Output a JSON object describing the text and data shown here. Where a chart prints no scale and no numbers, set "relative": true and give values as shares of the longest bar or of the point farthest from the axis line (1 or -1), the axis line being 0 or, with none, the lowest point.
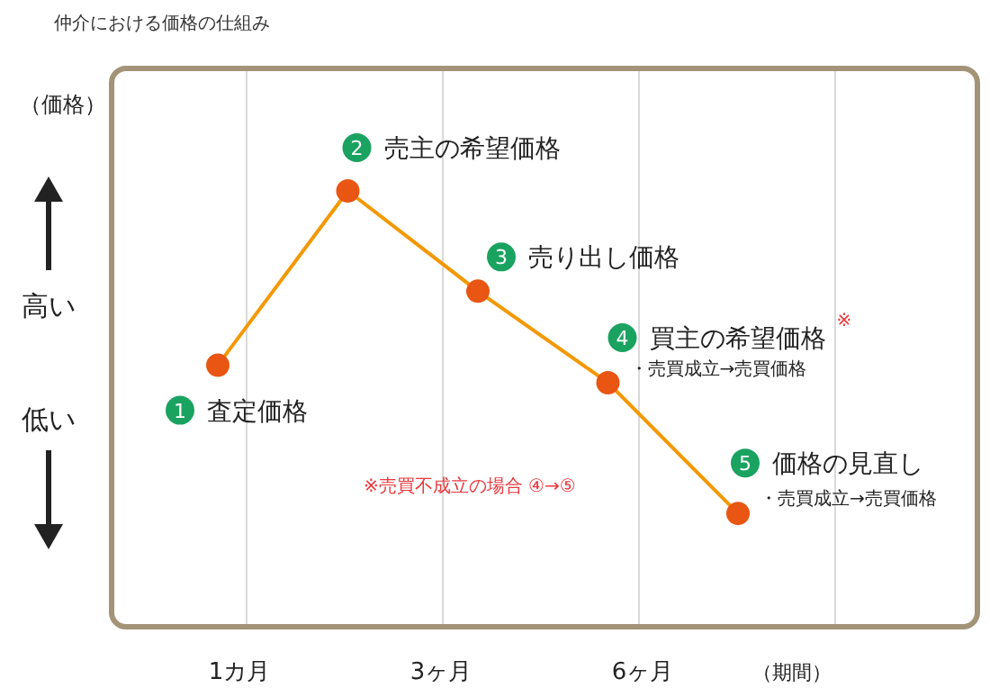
{
  "chart_data": {
    "type": "line",
    "title": "仲介における価格の仕組み",
    "ylabel": "（価格）",
    "relative": true,
    "categories": [
      null,
      null,
      null,
      null,
      null
    ],
    "series": [
      {
        "color": "#f39800",
        "colors": [
          "#e95513",
          "#e95513",
          "#e95513",
          "#e95513",
          "#e95513"
        ],
        "values": [
          0.6,
          1,
          0.77,
          0.56,
          0.26
        ]
      }
    ],
    "grid": "x",
    "marker": "circle",
    "line_style": "solid",
    "annotations": [
      "1カ月",
      "3ヶ月",
      "6ヶ月",
      "（期間）",
      "1 査定価格",
      "2 売主の希望価格",
      "3 売り出し価格",
      "4 買主の希望価格",
      "5 価格の見直し",
      "※",
      "・売買成立→売買価格",
      "・売買成立→売買価格",
      "※売買不成立の場合 ④→⑤",
      "高い",
      "低い"
    ]
  }
}
